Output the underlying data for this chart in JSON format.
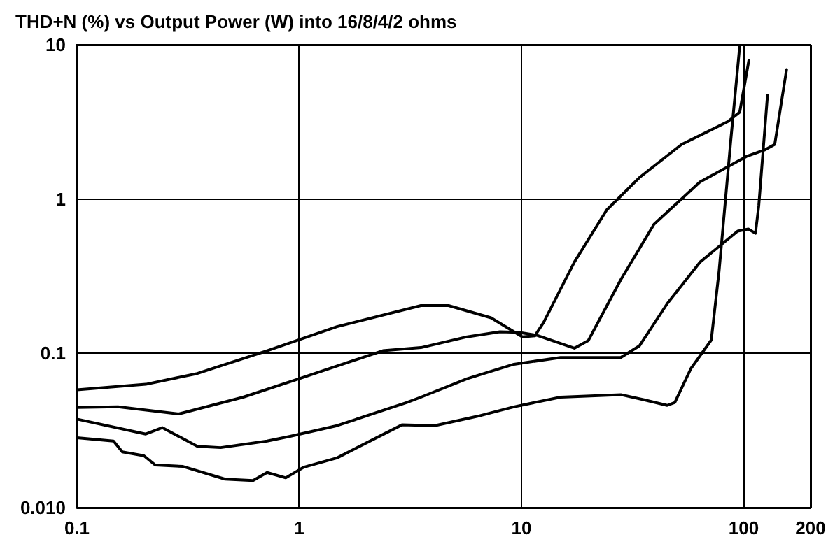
{
  "chart_data": {
    "type": "line",
    "title": "THD+N (%) vs Output Power (W) into 16/8/4/2 ohms",
    "log": "xy",
    "grid": true,
    "marker": "none",
    "line_style": "solid",
    "xlim": [
      0.1,
      200
    ],
    "xticks": [
      0.1,
      1,
      10,
      100,
      200
    ],
    "ylim": [
      0.01,
      10
    ],
    "yticks": [
      {
        "value": 0.01,
        "label": "0.010"
      },
      0.1,
      1,
      10
    ],
    "series": [
      {
        "color": "#000000",
        "x": [
          0.1,
          0.204,
          0.348,
          0.717,
          1.48,
          3.53,
          4.7,
          7.3,
          10.1,
          11.5,
          12.6,
          17.3,
          24.2,
          34,
          52.6,
          85,
          96,
          105.5
        ],
        "values": [
          0.058,
          0.063,
          0.074,
          0.104,
          0.149,
          0.204,
          0.204,
          0.17,
          0.128,
          0.13,
          0.159,
          0.39,
          0.85,
          1.38,
          2.26,
          3.18,
          3.66,
          7.9
        ]
      },
      {
        "color": "#000000",
        "x": [
          0.1,
          0.153,
          0.287,
          0.56,
          1,
          2.38,
          3.53,
          5.7,
          8,
          9.7,
          11.7,
          17.3,
          20,
          28,
          39.5,
          63.6,
          103,
          125,
          138,
          156
        ],
        "values": [
          0.0446,
          0.045,
          0.0405,
          0.052,
          0.0685,
          0.104,
          0.109,
          0.128,
          0.138,
          0.137,
          0.131,
          0.108,
          0.121,
          0.3,
          0.686,
          1.29,
          1.89,
          2.09,
          2.26,
          6.9
        ]
      },
      {
        "color": "#000000",
        "x": [
          0.1,
          0.204,
          0.242,
          0.348,
          0.443,
          0.717,
          0.91,
          1.48,
          3.05,
          3.53,
          5.7,
          9.25,
          15,
          28,
          34,
          45.3,
          63.6,
          94,
          105,
          113,
          117,
          128
        ],
        "values": [
          0.0375,
          0.03,
          0.033,
          0.025,
          0.0245,
          0.027,
          0.029,
          0.034,
          0.048,
          0.052,
          0.0685,
          0.085,
          0.094,
          0.094,
          0.112,
          0.21,
          0.39,
          0.62,
          0.64,
          0.6,
          0.91,
          4.7
        ]
      },
      {
        "color": "#000000",
        "x": [
          0.1,
          0.146,
          0.16,
          0.2,
          0.225,
          0.3,
          0.464,
          0.62,
          0.717,
          0.87,
          1.05,
          1.48,
          2.38,
          2.9,
          4.07,
          6.3,
          9.25,
          15,
          28,
          35.6,
          45.3,
          49,
          58,
          71.5,
          77.5,
          87.5,
          96
        ],
        "values": [
          0.0284,
          0.027,
          0.023,
          0.0217,
          0.0189,
          0.0185,
          0.0153,
          0.015,
          0.0169,
          0.0156,
          0.0183,
          0.021,
          0.0298,
          0.0344,
          0.034,
          0.039,
          0.045,
          0.052,
          0.054,
          0.05,
          0.046,
          0.048,
          0.08,
          0.122,
          0.34,
          2.4,
          9.8
        ]
      }
    ]
  }
}
